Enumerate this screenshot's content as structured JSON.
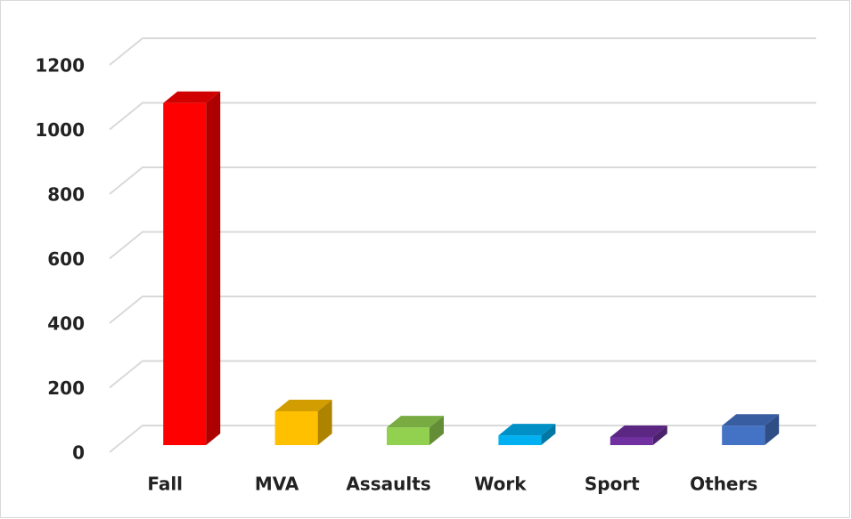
{
  "chart_data": {
    "type": "bar3d",
    "categories": [
      "Fall",
      "MVA",
      "Assaults",
      "Work",
      "Sport",
      "Others"
    ],
    "values": [
      1060,
      105,
      55,
      30,
      25,
      60
    ],
    "colors": [
      "#ff0000",
      "#ffc000",
      "#92d050",
      "#00b0f0",
      "#7030a0",
      "#4472c4"
    ],
    "ylim": [
      0,
      1200
    ],
    "yticks": [
      0,
      200,
      400,
      600,
      800,
      1000,
      1200
    ],
    "grid": true
  }
}
